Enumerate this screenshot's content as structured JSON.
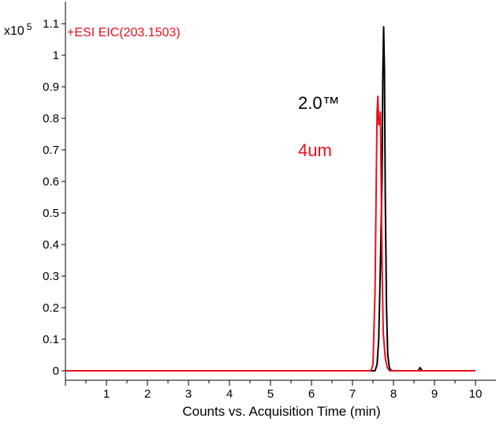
{
  "chart_data": {
    "type": "line",
    "scale_label": "x10",
    "scale_exponent": "5",
    "trace_label": "+ESI EIC(203.1503)",
    "xlabel": "Counts vs. Acquisition Time (min)",
    "ylabel": "",
    "xlim": [
      0,
      10.5
    ],
    "ylim": [
      -0.03,
      1.17
    ],
    "x_ticks": [
      "1",
      "2",
      "3",
      "4",
      "5",
      "6",
      "7",
      "8",
      "9",
      "10"
    ],
    "y_ticks": [
      "0",
      "0.1",
      "0.2",
      "0.3",
      "0.4",
      "0.5",
      "0.6",
      "0.7",
      "0.8",
      "0.9",
      "1",
      "1.1"
    ],
    "series": [
      {
        "name": "2.0™",
        "color": "#000000",
        "x": [
          0.0,
          7.55,
          7.6,
          7.64,
          7.68,
          7.72,
          7.74,
          7.76,
          7.78,
          7.8,
          7.83,
          7.86,
          7.9,
          7.95,
          8.6,
          8.65,
          8.7,
          10.0
        ],
        "y": [
          0.0,
          0.0,
          0.02,
          0.1,
          0.33,
          0.6,
          0.94,
          1.09,
          0.95,
          0.55,
          0.2,
          0.05,
          0.01,
          0.0,
          0.0,
          0.01,
          0.0,
          0.0
        ]
      },
      {
        "name": "4um",
        "color": "#e8101e",
        "x": [
          0.0,
          7.45,
          7.5,
          7.55,
          7.58,
          7.6,
          7.62,
          7.64,
          7.66,
          7.68,
          7.7,
          7.72,
          7.75,
          7.8,
          7.85,
          7.9,
          10.0
        ],
        "y": [
          0.0,
          0.0,
          0.02,
          0.25,
          0.6,
          0.82,
          0.87,
          0.78,
          0.78,
          0.82,
          0.6,
          0.35,
          0.12,
          0.04,
          0.01,
          0.0,
          0.0
        ]
      }
    ]
  }
}
